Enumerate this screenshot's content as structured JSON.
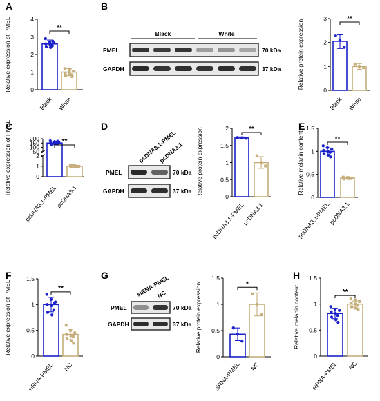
{
  "colors": {
    "blue": "#1b22c9",
    "tan": "#c5ae7b",
    "axis": "#000000"
  },
  "chart_data": [
    {
      "panel": "A",
      "type": "bar",
      "ylabel": "Relative expression of PMEL",
      "categories": [
        "Black",
        "White"
      ],
      "values": [
        2.6,
        1.0
      ],
      "errors": [
        0.22,
        0.2
      ],
      "points": [
        [
          2.9,
          2.7,
          2.65,
          2.6,
          2.55,
          2.5,
          2.45,
          2.4,
          2.75
        ],
        [
          1.2,
          1.1,
          1.05,
          0.95,
          0.9,
          0.85,
          0.8,
          1.15,
          0.75
        ]
      ],
      "yticks": [
        0,
        1,
        2,
        3,
        4
      ],
      "ylim": [
        0,
        4
      ],
      "significance": "**"
    },
    {
      "panel": "B",
      "type": "bar",
      "ylabel": "Relative protein expression",
      "categories": [
        "Black",
        "White"
      ],
      "values": [
        2.05,
        1.0
      ],
      "errors": [
        0.3,
        0.12
      ],
      "points": [
        [
          2.3,
          2.1,
          1.8
        ],
        [
          1.1,
          1.0,
          0.95
        ]
      ],
      "yticks": [
        0,
        1,
        2,
        3
      ],
      "ylim": [
        0,
        3
      ],
      "significance": "**"
    },
    {
      "panel": "C",
      "type": "bar",
      "ylabel": "Relative expression of PMEL",
      "categories": [
        "pcDNA3.1-PMEL",
        "pcDNA3.1"
      ],
      "values": [
        150,
        1.0
      ],
      "errors": [
        20,
        0.1
      ],
      "points": [
        [
          175,
          165,
          160,
          150,
          145,
          140,
          130,
          155,
          170
        ],
        [
          1.1,
          1.05,
          1.0,
          0.98,
          0.95,
          0.92,
          1.08,
          1.02,
          0.97
        ]
      ],
      "yticks": [
        0,
        1,
        2,
        50,
        100,
        150,
        200
      ],
      "axis_break": [
        2,
        50
      ],
      "significance": "**"
    },
    {
      "panel": "D",
      "type": "bar",
      "ylabel": "Relative protein expression",
      "categories": [
        "pcDNA3.1-PMEL",
        "pcDNA3.1"
      ],
      "values": [
        1.72,
        1.0
      ],
      "errors": [
        0.03,
        0.17
      ],
      "points": [
        [
          1.73,
          1.72,
          1.71
        ],
        [
          1.2,
          1.0,
          0.9
        ]
      ],
      "yticks": [
        0.0,
        0.5,
        1.0,
        1.5,
        2.0
      ],
      "ylim": [
        0,
        2
      ],
      "significance": "**"
    },
    {
      "panel": "E",
      "type": "bar",
      "ylabel": "Relative melanin content",
      "categories": [
        "pcDNA3.1-PMEL",
        "pcDNA3.1"
      ],
      "values": [
        1.0,
        0.42
      ],
      "errors": [
        0.08,
        0.02
      ],
      "points": [
        [
          1.12,
          1.08,
          1.05,
          1.02,
          1.0,
          0.98,
          0.95,
          0.92,
          0.88
        ],
        [
          0.44,
          0.43,
          0.42,
          0.42,
          0.41,
          0.41,
          0.4,
          0.43,
          0.42
        ]
      ],
      "yticks": [
        0.0,
        0.5,
        1.0,
        1.5
      ],
      "ylim": [
        0,
        1.5
      ],
      "significance": "**"
    },
    {
      "panel": "F",
      "type": "bar",
      "ylabel": "Relative expression of PMEL",
      "categories": [
        "siRNA-PMEL",
        "NC"
      ],
      "values": [
        1.0,
        0.42
      ],
      "errors": [
        0.14,
        0.1
      ],
      "points": [
        [
          1.2,
          1.1,
          1.05,
          1.0,
          0.98,
          0.9,
          0.85,
          0.8,
          1.02
        ],
        [
          0.6,
          0.5,
          0.45,
          0.42,
          0.4,
          0.38,
          0.35,
          0.3,
          0.25
        ]
      ],
      "yticks": [
        0.0,
        0.5,
        1.0,
        1.5
      ],
      "ylim": [
        0,
        1.5
      ],
      "significance": "**"
    },
    {
      "panel": "G",
      "type": "bar",
      "ylabel": "Relative protein expression",
      "categories": [
        "siRNA-PMEL",
        "NC"
      ],
      "values": [
        0.43,
        1.0
      ],
      "errors": [
        0.12,
        0.22
      ],
      "points": [
        [
          0.55,
          0.43,
          0.3
        ],
        [
          1.2,
          1.0,
          0.8
        ]
      ],
      "yticks": [
        0.0,
        0.5,
        1.0,
        1.5
      ],
      "ylim": [
        0,
        1.5
      ],
      "significance": "*"
    },
    {
      "panel": "H",
      "type": "bar",
      "ylabel": "Relative melanin content",
      "categories": [
        "siRNA-PMEL",
        "NC"
      ],
      "values": [
        0.82,
        1.0
      ],
      "errors": [
        0.1,
        0.06
      ],
      "points": [
        [
          0.95,
          0.9,
          0.88,
          0.85,
          0.82,
          0.78,
          0.75,
          0.7,
          0.65
        ],
        [
          1.1,
          1.08,
          1.05,
          1.02,
          1.0,
          0.98,
          0.95,
          0.92,
          0.9
        ]
      ],
      "yticks": [
        0.0,
        0.5,
        1.0,
        1.5
      ],
      "ylim": [
        0,
        1.5
      ],
      "significance": "**"
    }
  ],
  "blots": {
    "B": {
      "groups": [
        "Black",
        "White"
      ],
      "rows": [
        "PMEL",
        "GAPDH"
      ],
      "sizes": [
        "70 kDa",
        "37 kDa"
      ]
    },
    "D": {
      "lanes": [
        "pcDNA3.1-PMEL",
        "pcDNA3.1"
      ],
      "rows": [
        "PMEL",
        "GAPDH"
      ],
      "sizes": [
        "70 kDa",
        "37 kDa"
      ]
    },
    "G": {
      "lanes": [
        "siRNA-PMEL",
        "NC"
      ],
      "rows": [
        "PMEL",
        "GAPDH"
      ],
      "sizes": [
        "70 kDa",
        "37 kDa"
      ]
    }
  }
}
